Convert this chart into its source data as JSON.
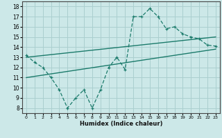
{
  "xlabel": "Humidex (Indice chaleur)",
  "ylabel": "",
  "bg_color": "#cce8e8",
  "grid_color": "#aacfcf",
  "line_color": "#1a7a6a",
  "xlim": [
    -0.5,
    23.5
  ],
  "ylim": [
    7.5,
    18.5
  ],
  "xticks": [
    0,
    1,
    2,
    3,
    4,
    5,
    6,
    7,
    8,
    9,
    10,
    11,
    12,
    13,
    14,
    15,
    16,
    17,
    18,
    19,
    20,
    21,
    22,
    23
  ],
  "yticks": [
    8,
    9,
    10,
    11,
    12,
    13,
    14,
    15,
    16,
    17,
    18
  ],
  "zigzag_x": [
    0,
    1,
    2,
    3,
    4,
    5,
    6,
    7,
    8,
    9,
    10,
    11,
    12,
    13,
    14,
    15,
    16,
    17,
    18,
    19,
    20,
    21,
    22,
    23
  ],
  "zigzag_y": [
    13.2,
    12.5,
    12.0,
    11.0,
    9.8,
    8.0,
    9.0,
    9.8,
    8.0,
    9.8,
    12.0,
    13.0,
    11.8,
    17.0,
    17.0,
    17.8,
    17.0,
    15.8,
    16.0,
    15.3,
    15.0,
    14.8,
    14.2,
    14.1
  ],
  "upper_line_x": [
    0,
    23
  ],
  "upper_line_y": [
    13.0,
    15.0
  ],
  "lower_line_x": [
    0,
    23
  ],
  "lower_line_y": [
    11.0,
    13.8
  ],
  "marker": "+"
}
